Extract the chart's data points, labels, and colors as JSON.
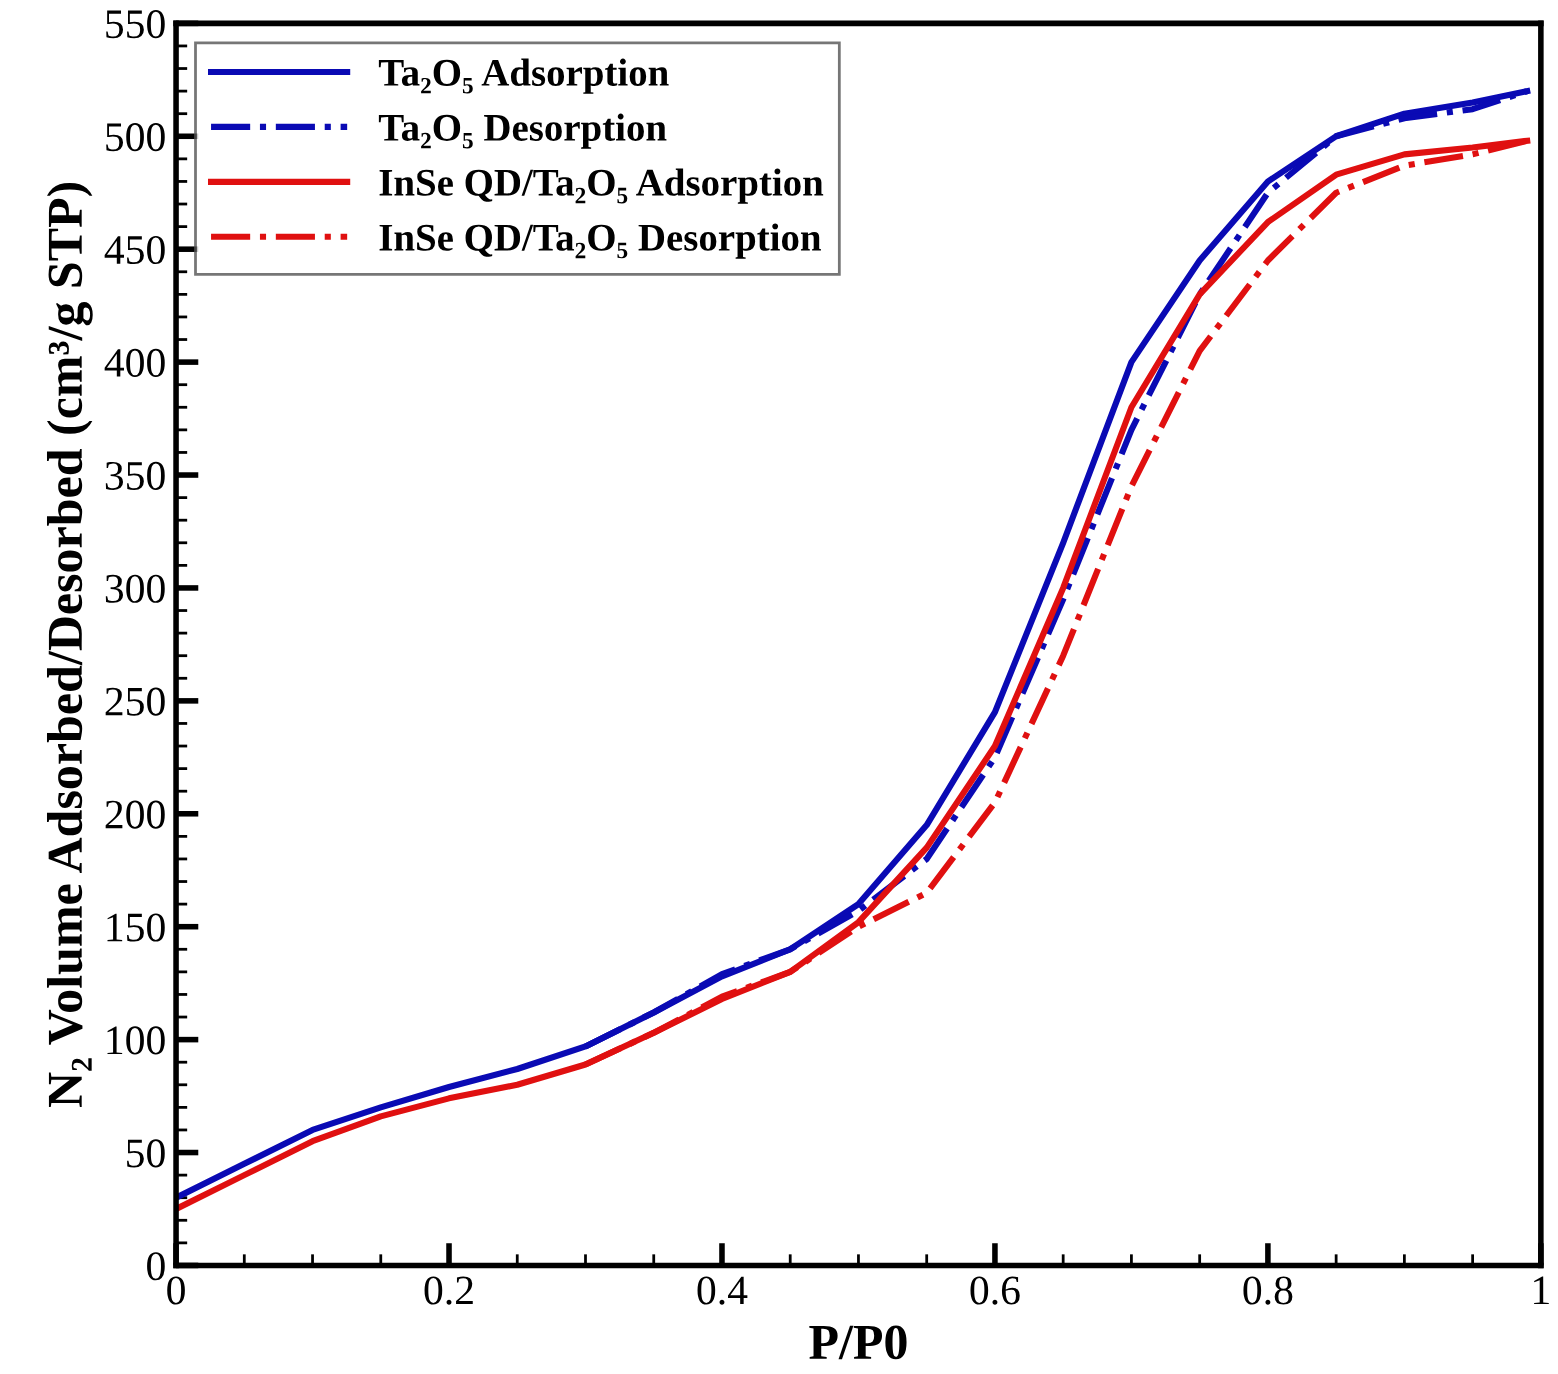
{
  "chart_data": {
    "type": "line",
    "xlabel": "P/P0",
    "ylabel": "N₂ Volume Adsorbed/Desorbed (cm³/g STP)",
    "xlim": [
      0,
      1
    ],
    "xticks": [
      0,
      0.2,
      0.4,
      0.6,
      0.8,
      1
    ],
    "ylim": [
      0,
      550
    ],
    "yticks": [
      0,
      50,
      100,
      150,
      200,
      250,
      300,
      350,
      400,
      450,
      500,
      550
    ],
    "grid": false,
    "legend": "top left",
    "marker": "none",
    "series": [
      {
        "name": "Ta₂O₅ Adsorption",
        "color": "#0a0ab4",
        "line_style": "solid",
        "x": [
          0,
          0.05,
          0.1,
          0.15,
          0.2,
          0.25,
          0.3,
          0.35,
          0.4,
          0.45,
          0.5,
          0.55,
          0.6,
          0.65,
          0.7,
          0.75,
          0.8,
          0.85,
          0.9,
          0.95,
          0.99
        ],
        "values": [
          30,
          45,
          60,
          70,
          79,
          87,
          97,
          112,
          128,
          140,
          160,
          195,
          245,
          320,
          400,
          445,
          480,
          500,
          510,
          515,
          520
        ]
      },
      {
        "name": "Ta₂O₅ Desorption",
        "color": "#0a0ab4",
        "line_style": "dashdot",
        "x": [
          0.3,
          0.35,
          0.4,
          0.45,
          0.5,
          0.55,
          0.6,
          0.65,
          0.7,
          0.75,
          0.8,
          0.85,
          0.9,
          0.95,
          0.99
        ],
        "values": [
          97,
          112,
          129,
          140,
          157,
          180,
          225,
          295,
          370,
          430,
          475,
          500,
          508,
          512,
          520
        ]
      },
      {
        "name": "InSe QD/Ta₂O₅ Adsorption",
        "color": "#e01010",
        "line_style": "solid",
        "x": [
          0,
          0.05,
          0.1,
          0.15,
          0.2,
          0.25,
          0.3,
          0.35,
          0.4,
          0.45,
          0.5,
          0.55,
          0.6,
          0.65,
          0.7,
          0.75,
          0.8,
          0.85,
          0.9,
          0.95,
          0.99
        ],
        "values": [
          25,
          40,
          55,
          66,
          74,
          80,
          89,
          103,
          118,
          130,
          152,
          185,
          230,
          300,
          380,
          430,
          462,
          483,
          492,
          495,
          498
        ]
      },
      {
        "name": "InSe QD/Ta₂O₅ Desorption",
        "color": "#e01010",
        "line_style": "dashdot",
        "x": [
          0.3,
          0.35,
          0.4,
          0.45,
          0.5,
          0.55,
          0.6,
          0.65,
          0.7,
          0.75,
          0.8,
          0.85,
          0.9,
          0.95,
          0.99
        ],
        "values": [
          89,
          103,
          119,
          130,
          150,
          165,
          205,
          270,
          345,
          405,
          445,
          475,
          487,
          492,
          498
        ]
      }
    ]
  }
}
